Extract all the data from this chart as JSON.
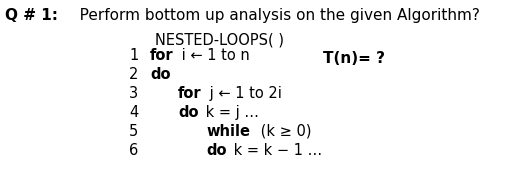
{
  "bg_color": "#ffffff",
  "question_bold": "Q # 1:",
  "question_normal": "   Perform bottom up analysis on the given Algorithm?",
  "title_text": "NESTED-LOOPS( )",
  "lines": [
    {
      "num": "1",
      "bold": "for",
      "normal": " i ← 1 to n",
      "indent": 0
    },
    {
      "num": "2",
      "bold": "do",
      "normal": "",
      "indent": 0
    },
    {
      "num": "3",
      "bold": "for",
      "normal": " j ← 1 to 2i",
      "indent": 1
    },
    {
      "num": "4",
      "bold": "do",
      "normal": " k = j …",
      "indent": 1
    },
    {
      "num": "5",
      "bold": "while",
      "normal": " (k ≥ 0)",
      "indent": 2
    },
    {
      "num": "6",
      "bold": "do",
      "normal": " k = k − 1 …",
      "indent": 2
    }
  ],
  "tn_text": "T(n)= ?",
  "q_fontsize": 11,
  "title_fontsize": 10.5,
  "code_fontsize": 10.5,
  "tn_fontsize": 11
}
